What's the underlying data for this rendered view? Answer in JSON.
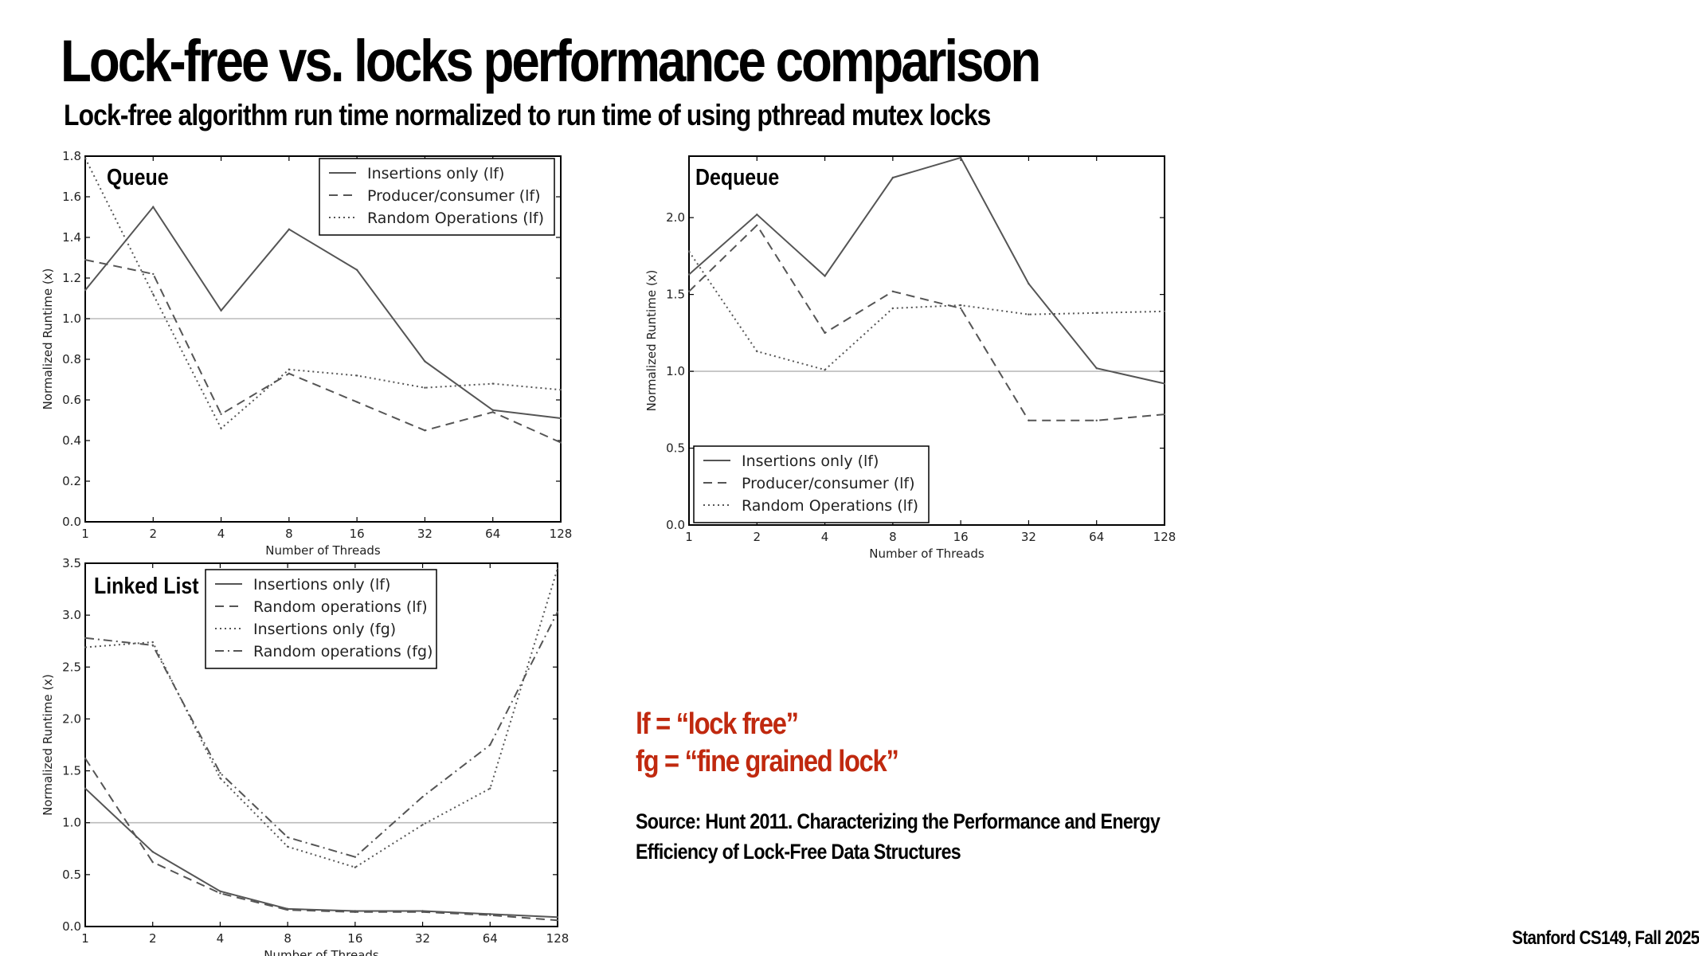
{
  "slide": {
    "title": "Lock-free vs. locks performance comparison",
    "subtitle": "Lock-free algorithm run time normalized to run time of using pthread mutex locks",
    "note_lf": "lf = “lock free”",
    "note_fg": "fg = “fine grained lock”",
    "source": "Source: Hunt 2011. Characterizing the Performance and Energy Efficiency of Lock-Free Data Structures",
    "footer": "Stanford CS149, Fall 2025"
  },
  "colors": {
    "line": "#555555",
    "refline": "#bbbbbb",
    "note": "#c0290f"
  },
  "chart_data": [
    {
      "id": "queue",
      "type": "line",
      "title": "Queue",
      "xlabel": "Number of Threads",
      "ylabel": "Normalized Runtime (x)",
      "categories": [
        "1",
        "2",
        "4",
        "8",
        "16",
        "32",
        "64",
        "128"
      ],
      "ylim": [
        0,
        1.8
      ],
      "yticks": [
        "0.0",
        "0.2",
        "0.4",
        "0.6",
        "0.8",
        "1.0",
        "1.2",
        "1.4",
        "1.6",
        "1.8"
      ],
      "yticks_values": [
        0,
        0.2,
        0.4,
        0.6,
        0.8,
        1.0,
        1.2,
        1.4,
        1.6,
        1.8
      ],
      "reference_line": 1.0,
      "legend_position": "top-right",
      "series": [
        {
          "name": "Insertions only (lf)",
          "style": "solid",
          "values": [
            1.14,
            1.55,
            1.04,
            1.44,
            1.24,
            0.79,
            0.55,
            0.51
          ]
        },
        {
          "name": "Producer/consumer (lf)",
          "style": "dashed",
          "values": [
            1.29,
            1.22,
            0.53,
            0.73,
            0.59,
            0.45,
            0.54,
            0.39
          ]
        },
        {
          "name": "Random Operations (lf)",
          "style": "dotted",
          "values": [
            1.79,
            1.12,
            0.46,
            0.75,
            0.72,
            0.66,
            0.68,
            0.65
          ]
        }
      ]
    },
    {
      "id": "dequeue",
      "type": "line",
      "title": "Dequeue",
      "xlabel": "Number of Threads",
      "ylabel": "Normalized Runtime (x)",
      "categories": [
        "1",
        "2",
        "4",
        "8",
        "16",
        "32",
        "64",
        "128"
      ],
      "ylim": [
        0,
        2.4
      ],
      "yticks": [
        "0.0",
        "0.5",
        "1.0",
        "1.5",
        "2.0"
      ],
      "yticks_values": [
        0,
        0.5,
        1.0,
        1.5,
        2.0
      ],
      "reference_line": 1.0,
      "legend_position": "bottom-left",
      "series": [
        {
          "name": "Insertions only (lf)",
          "style": "solid",
          "values": [
            1.63,
            2.02,
            1.62,
            2.26,
            2.39,
            1.57,
            1.02,
            0.92
          ]
        },
        {
          "name": "Producer/consumer (lf)",
          "style": "dashed",
          "values": [
            1.52,
            1.95,
            1.25,
            1.52,
            1.41,
            0.68,
            0.68,
            0.72
          ]
        },
        {
          "name": "Random Operations (lf)",
          "style": "dotted",
          "values": [
            1.78,
            1.13,
            1.01,
            1.41,
            1.43,
            1.37,
            1.38,
            1.39
          ]
        }
      ]
    },
    {
      "id": "linkedlist",
      "type": "line",
      "title": "Linked List",
      "xlabel": "Number of Threads",
      "ylabel": "Normalized Runtime (x)",
      "categories": [
        "1",
        "2",
        "4",
        "8",
        "16",
        "32",
        "64",
        "128"
      ],
      "ylim": [
        0,
        3.5
      ],
      "yticks": [
        "0.0",
        "0.5",
        "1.0",
        "1.5",
        "2.0",
        "2.5",
        "3.0",
        "3.5"
      ],
      "yticks_values": [
        0,
        0.5,
        1.0,
        1.5,
        2.0,
        2.5,
        3.0,
        3.5
      ],
      "reference_line": 1.0,
      "legend_position": "top-center",
      "series": [
        {
          "name": "Insertions only (lf)",
          "style": "solid",
          "values": [
            1.33,
            0.72,
            0.34,
            0.17,
            0.15,
            0.15,
            0.12,
            0.09
          ]
        },
        {
          "name": "Random operations (lf)",
          "style": "dashed",
          "values": [
            1.62,
            0.62,
            0.32,
            0.16,
            0.14,
            0.14,
            0.11,
            0.06
          ]
        },
        {
          "name": "Insertions only (fg)",
          "style": "dotted",
          "values": [
            2.69,
            2.74,
            1.43,
            0.77,
            0.57,
            0.98,
            1.33,
            3.45
          ]
        },
        {
          "name": "Random operations (fg)",
          "style": "dashdot",
          "values": [
            2.78,
            2.71,
            1.48,
            0.86,
            0.67,
            1.25,
            1.75,
            3.03
          ]
        }
      ]
    }
  ]
}
